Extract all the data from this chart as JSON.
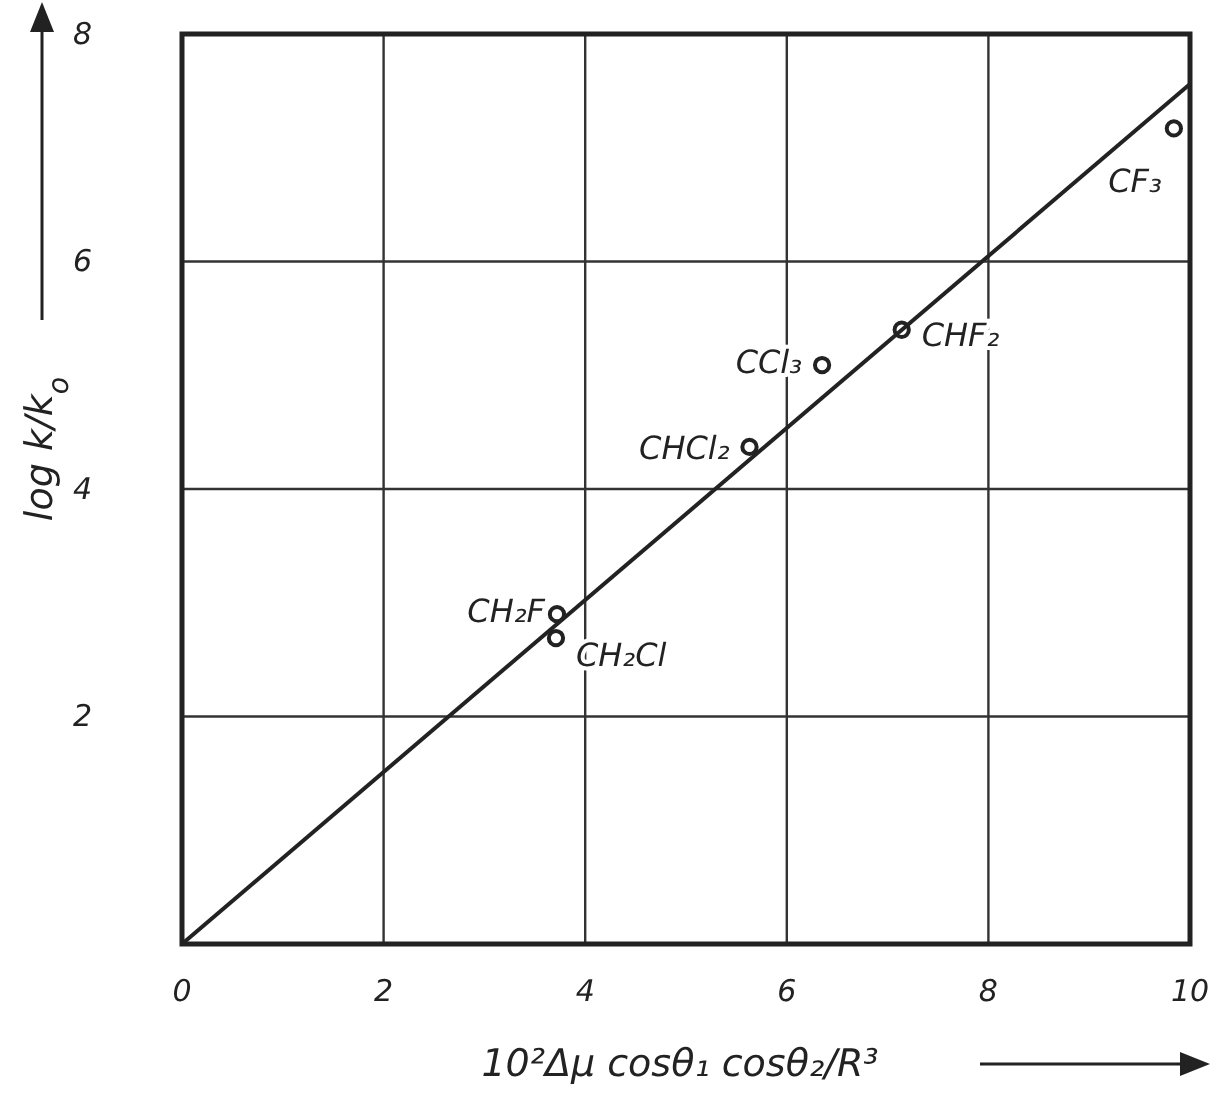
{
  "chart_data": {
    "type": "scatter",
    "xlabel": "10²Δμ cosθ₁ cosθ₂/R³",
    "ylabel": "log k/k$_{o}$",
    "xlim": [
      0,
      10
    ],
    "ylim": [
      0,
      8
    ],
    "xticks": [
      0,
      2,
      4,
      6,
      8,
      10
    ],
    "yticks": [
      {
        "value": 0,
        "label": null
      },
      2,
      4,
      6,
      8
    ],
    "grid": true,
    "series": [
      {
        "marker": "circle",
        "color": "#222222",
        "x": [
          9.84,
          7.14,
          6.35,
          5.63,
          3.72,
          3.71
        ],
        "values": [
          7.17,
          5.4,
          5.09,
          4.37,
          2.9,
          2.69
        ]
      },
      {
        "type": "line",
        "color": "#222222",
        "x": [
          0,
          10
        ],
        "values": [
          0,
          7.56
        ]
      }
    ],
    "annotations": [
      {
        "text": "CF₃",
        "x": 9.84,
        "y": 7.17
      },
      {
        "text": "CHF₂",
        "x": 7.14,
        "y": 5.4
      },
      {
        "text": "CCl₃",
        "x": 6.35,
        "y": 5.09
      },
      {
        "text": "CHCl₂",
        "x": 5.63,
        "y": 4.37
      },
      {
        "text": "CH₂F",
        "x": 3.72,
        "y": 2.9
      },
      {
        "text": "CH₂Cl",
        "x": 3.71,
        "y": 2.69
      }
    ]
  }
}
